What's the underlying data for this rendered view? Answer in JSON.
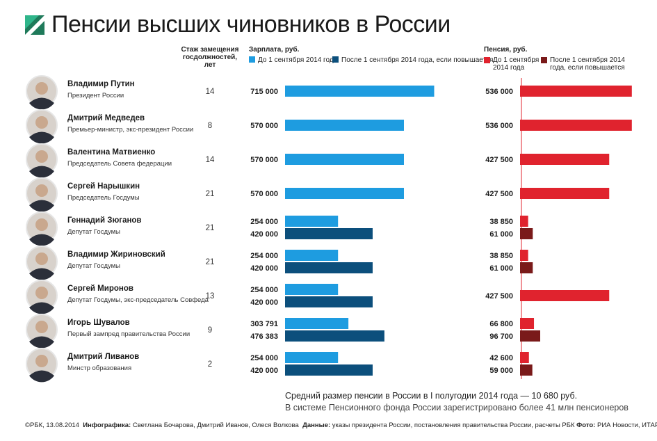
{
  "title": "Пенсии высших чиновников в России",
  "tenure_header": "Стаж замещения госдолжностей, лет",
  "people": [
    {
      "name": "Владимир Путин",
      "position": "Президент России",
      "tenure": 14
    },
    {
      "name": "Дмитрий Медведев",
      "position": "Премьер-министр, экс-президент России",
      "tenure": 8
    },
    {
      "name": "Валентина Матвиенко",
      "position": "Председатель Совета федерации",
      "tenure": 14
    },
    {
      "name": "Сергей Нарышкин",
      "position": "Председатель Госдумы",
      "tenure": 21
    },
    {
      "name": "Геннадий Зюганов",
      "position": "Депутат Госдумы",
      "tenure": 21
    },
    {
      "name": "Владимир Жириновский",
      "position": "Депутат Госдумы",
      "tenure": 21
    },
    {
      "name": "Сергей Миронов",
      "position": "Депутат Госдумы, экс-председатель Совфеда",
      "tenure": 13
    },
    {
      "name": "Игорь Шувалов",
      "position": "Первый зампред правительства России",
      "tenure": 9
    },
    {
      "name": "Дмитрий Ливанов",
      "position": "Минстр образования",
      "tenure": 2
    }
  ],
  "chart_data": [
    {
      "type": "bar",
      "orientation": "horizontal",
      "axis_label": "Зарплата, руб.",
      "xlim": [
        0,
        880000
      ],
      "series": [
        {
          "name": "До 1 сентября 2014 года",
          "color": "#1e9ce0",
          "values": [
            715000,
            570000,
            570000,
            570000,
            254000,
            254000,
            254000,
            303791,
            254000
          ],
          "value_labels": [
            "715 000",
            "570 000",
            "570 000",
            "570 000",
            "254 000",
            "254 000",
            "254 000",
            "303 791",
            "254 000"
          ]
        },
        {
          "name": "После 1 сентября 2014 года, если повышается",
          "color": "#0c4f7c",
          "values": [
            null,
            null,
            null,
            null,
            420000,
            420000,
            420000,
            476383,
            420000
          ],
          "value_labels": [
            null,
            null,
            null,
            null,
            "420 000",
            "420 000",
            "420 000",
            "476 383",
            "420 000"
          ]
        }
      ]
    },
    {
      "type": "bar",
      "orientation": "horizontal",
      "axis_label": "Пенсия, руб.",
      "xlim": [
        0,
        540000
      ],
      "series": [
        {
          "name": "До 1 сентября 2014 года",
          "color": "#e0232e",
          "values": [
            536000,
            536000,
            427500,
            427500,
            38850,
            38850,
            427500,
            66800,
            42600
          ],
          "value_labels": [
            "536 000",
            "536 000",
            "427 500",
            "427 500",
            "38 850",
            "38 850",
            "427 500",
            "66 800",
            "42 600"
          ]
        },
        {
          "name": "После 1 сентября 2014 года, если повышается",
          "color": "#7a1a1a",
          "values": [
            null,
            null,
            null,
            null,
            61000,
            61000,
            null,
            96700,
            59000
          ],
          "value_labels": [
            null,
            null,
            null,
            null,
            "61 000",
            "61 000",
            null,
            "96 700",
            "59 000"
          ]
        }
      ]
    }
  ],
  "notes": [
    "Средний размер пенсии в России в I полугодии 2014 года — 10 680 руб.",
    "В системе Пенсионного фонда России зарегистрировано более 41 млн пенсионеров"
  ],
  "footer": {
    "copyright": "©РБК, 13.08.2014",
    "credits": [
      {
        "label": "Инфографика:",
        "text": "Светлана Бочарова, Дмитрий Иванов, Олеся Волкова"
      },
      {
        "label": "Данные:",
        "text": "указы президента России, постановления правительства России, расчеты РБК"
      },
      {
        "label": "Фото:",
        "text": "РИА Новости, ИТАР-ТАСС"
      }
    ]
  }
}
